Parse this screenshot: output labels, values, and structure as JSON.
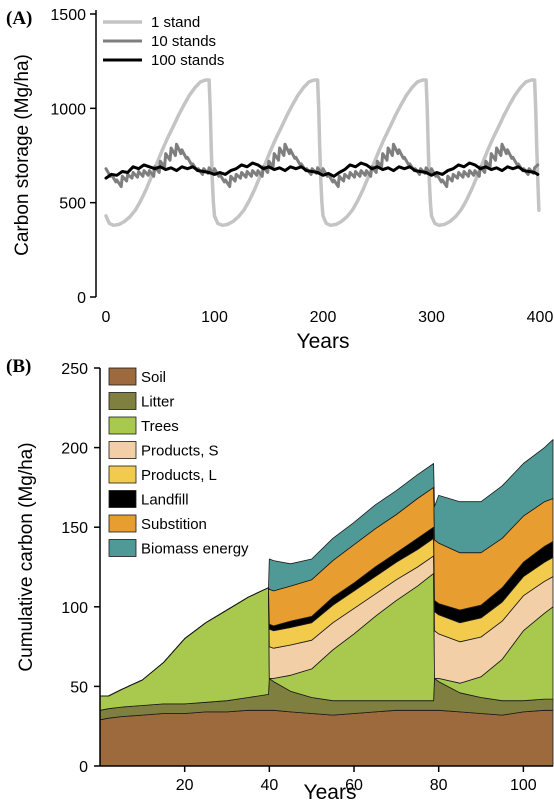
{
  "chart_data": [
    {
      "panel_label": "(A)",
      "type": "line",
      "xlabel": "Years",
      "ylabel": "Carbon storage (Mg/ha)",
      "xlim": [
        0,
        400
      ],
      "ylim": [
        0,
        1500
      ],
      "xticks": [
        "0",
        "100",
        "200",
        "300",
        "400"
      ],
      "yticks": [
        "0",
        "500",
        "1000",
        "1500"
      ],
      "legend_position": "top-left",
      "series": [
        {
          "name": "1 stand",
          "color": "#c4c4c4",
          "x": [
            0,
            3,
            7,
            12,
            17,
            22,
            27,
            32,
            37,
            42,
            47,
            52,
            57,
            62,
            67,
            72,
            77,
            82,
            87,
            92,
            95,
            96,
            97,
            98,
            99,
            100,
            103,
            107,
            112,
            117,
            122,
            127,
            132,
            137,
            142,
            147,
            152,
            157,
            162,
            167,
            172,
            177,
            182,
            187,
            192,
            195,
            196,
            197,
            198,
            199,
            200,
            203,
            207,
            212,
            217,
            222,
            227,
            232,
            237,
            242,
            247,
            252,
            257,
            262,
            267,
            272,
            277,
            282,
            287,
            292,
            295,
            296,
            297,
            298,
            299,
            300,
            303,
            307,
            312,
            317,
            322,
            327,
            332,
            337,
            342,
            347,
            352,
            357,
            362,
            367,
            372,
            377,
            382,
            387,
            392,
            395,
            396,
            397,
            398,
            399
          ],
          "y": [
            430,
            390,
            380,
            385,
            400,
            425,
            460,
            510,
            570,
            640,
            710,
            780,
            845,
            905,
            965,
            1020,
            1070,
            1110,
            1140,
            1150,
            1150,
            1000,
            800,
            620,
            500,
            430,
            390,
            380,
            385,
            400,
            425,
            460,
            510,
            570,
            640,
            710,
            780,
            845,
            905,
            965,
            1020,
            1070,
            1110,
            1140,
            1150,
            1150,
            1000,
            800,
            620,
            500,
            430,
            390,
            380,
            385,
            400,
            425,
            460,
            510,
            570,
            640,
            710,
            780,
            845,
            905,
            965,
            1020,
            1070,
            1110,
            1140,
            1150,
            1150,
            1000,
            800,
            620,
            500,
            430,
            390,
            380,
            385,
            400,
            425,
            460,
            510,
            570,
            640,
            710,
            780,
            845,
            905,
            965,
            1020,
            1070,
            1110,
            1140,
            1150,
            1150,
            1000,
            800,
            620,
            460
          ]
        },
        {
          "name": "10 stands",
          "color": "#7f7f7f",
          "x": [
            0,
            4,
            5,
            9,
            10,
            14,
            15,
            19,
            20,
            24,
            25,
            29,
            30,
            34,
            35,
            39,
            40,
            44,
            45,
            49,
            50,
            54,
            55,
            59,
            60,
            64,
            65,
            69,
            70,
            74,
            75,
            79,
            80,
            84,
            85,
            89,
            90,
            94,
            95,
            99,
            100,
            104,
            105,
            109,
            110,
            114,
            115,
            119,
            120,
            124,
            125,
            129,
            130,
            134,
            135,
            139,
            140,
            144,
            145,
            149,
            150,
            154,
            155,
            159,
            160,
            164,
            165,
            169,
            170,
            174,
            175,
            179,
            180,
            184,
            185,
            189,
            190,
            194,
            195,
            199,
            200,
            204,
            205,
            209,
            210,
            214,
            215,
            219,
            220,
            224,
            225,
            229,
            230,
            234,
            235,
            239,
            240,
            244,
            245,
            249,
            250,
            254,
            255,
            259,
            260,
            264,
            265,
            269,
            270,
            274,
            275,
            279,
            280,
            284,
            285,
            289,
            290,
            294,
            295,
            299,
            300,
            304,
            305,
            309,
            310,
            314,
            315,
            319,
            320,
            324,
            325,
            329,
            330,
            334,
            335,
            339,
            340,
            344,
            345,
            349,
            350,
            354,
            355,
            359,
            360,
            364,
            365,
            369,
            370,
            374,
            375,
            379,
            380,
            384,
            385,
            389,
            390,
            394,
            395,
            398
          ],
          "y": [
            680,
            640,
            650,
            610,
            620,
            585,
            640,
            615,
            650,
            630,
            660,
            635,
            665,
            640,
            670,
            645,
            670,
            640,
            690,
            660,
            720,
            690,
            760,
            725,
            790,
            750,
            810,
            760,
            780,
            735,
            740,
            700,
            705,
            670,
            680,
            650,
            680,
            655,
            685,
            655,
            680,
            640,
            650,
            610,
            620,
            585,
            640,
            615,
            650,
            630,
            660,
            635,
            665,
            640,
            670,
            645,
            670,
            640,
            690,
            660,
            720,
            690,
            760,
            725,
            790,
            750,
            810,
            760,
            780,
            735,
            740,
            700,
            705,
            670,
            680,
            650,
            680,
            655,
            685,
            655,
            680,
            640,
            650,
            610,
            620,
            585,
            640,
            615,
            650,
            630,
            660,
            635,
            665,
            640,
            670,
            645,
            670,
            640,
            690,
            660,
            720,
            690,
            760,
            725,
            790,
            750,
            810,
            760,
            780,
            735,
            740,
            700,
            705,
            670,
            680,
            650,
            680,
            655,
            685,
            655,
            680,
            640,
            650,
            610,
            620,
            585,
            640,
            615,
            650,
            630,
            660,
            635,
            665,
            640,
            670,
            645,
            670,
            640,
            690,
            660,
            720,
            690,
            760,
            725,
            790,
            750,
            810,
            760,
            780,
            735,
            740,
            700,
            705,
            670,
            680,
            650,
            680,
            655,
            685,
            700
          ]
        },
        {
          "name": "100 stands",
          "color": "#000000",
          "x": [
            0,
            5,
            10,
            15,
            20,
            25,
            30,
            35,
            40,
            45,
            50,
            55,
            60,
            65,
            70,
            75,
            80,
            85,
            90,
            95,
            100,
            105,
            110,
            115,
            120,
            125,
            130,
            135,
            140,
            145,
            150,
            155,
            160,
            165,
            170,
            175,
            180,
            185,
            190,
            195,
            200,
            205,
            210,
            215,
            220,
            225,
            230,
            235,
            240,
            245,
            250,
            255,
            260,
            265,
            270,
            275,
            280,
            285,
            290,
            295,
            300,
            305,
            310,
            315,
            320,
            325,
            330,
            335,
            340,
            345,
            350,
            355,
            360,
            365,
            370,
            375,
            380,
            385,
            390,
            395,
            398
          ],
          "y": [
            630,
            650,
            645,
            665,
            660,
            690,
            680,
            700,
            690,
            680,
            690,
            675,
            685,
            670,
            690,
            680,
            690,
            670,
            665,
            660,
            650,
            660,
            650,
            670,
            680,
            700,
            690,
            710,
            700,
            680,
            690,
            675,
            685,
            670,
            690,
            680,
            690,
            670,
            665,
            660,
            645,
            655,
            640,
            660,
            675,
            700,
            690,
            710,
            700,
            680,
            690,
            675,
            685,
            670,
            690,
            680,
            690,
            670,
            665,
            660,
            645,
            660,
            650,
            670,
            680,
            700,
            690,
            710,
            700,
            680,
            690,
            675,
            685,
            670,
            690,
            680,
            690,
            670,
            665,
            660,
            650
          ]
        }
      ]
    },
    {
      "panel_label": "(B)",
      "type": "area",
      "stacked": true,
      "xlabel": "Years",
      "ylabel": "Cumulative carbon (Mg/ha)",
      "xlim": [
        0,
        107
      ],
      "ylim": [
        0,
        250
      ],
      "xticks": [
        "20",
        "40",
        "60",
        "80",
        "100"
      ],
      "yticks": [
        "0",
        "50",
        "100",
        "150",
        "200",
        "250"
      ],
      "legend_position": "top-left",
      "x": [
        0,
        2,
        5,
        10,
        15,
        20,
        25,
        30,
        35,
        39.8,
        40,
        41,
        45,
        50,
        55,
        60,
        65,
        70,
        75,
        78.8,
        79,
        80,
        85,
        90,
        95,
        100,
        105,
        107
      ],
      "series": [
        {
          "name": "Soil",
          "color": "#9c6a3c",
          "values": [
            29,
            30,
            31,
            32,
            33,
            33,
            34,
            34,
            35,
            35,
            35,
            35,
            34,
            33,
            32,
            33,
            34,
            35,
            35,
            35,
            35,
            35,
            34,
            33,
            32,
            34,
            35,
            35
          ]
        },
        {
          "name": "Litter",
          "color": "#7f7f3f",
          "values": [
            6,
            6,
            6,
            6,
            6,
            6,
            6,
            7,
            8,
            10,
            20,
            18,
            13,
            10,
            9,
            8,
            7,
            6,
            6,
            6,
            20,
            18,
            12,
            10,
            9,
            7,
            7,
            7
          ]
        },
        {
          "name": "Trees",
          "color": "#a8c94e",
          "values": [
            9,
            8,
            11,
            16,
            26,
            41,
            50,
            57,
            63,
            67,
            0,
            2,
            10,
            18,
            32,
            42,
            53,
            63,
            72,
            80,
            0,
            2,
            6,
            13,
            26,
            44,
            54,
            58
          ]
        },
        {
          "name": "Products, S",
          "color": "#f3cfa7",
          "values": [
            0,
            0,
            0,
            0,
            0,
            0,
            0,
            0,
            0,
            0,
            20,
            19,
            19,
            18,
            17,
            16,
            14,
            13,
            12,
            11,
            30,
            28,
            26,
            25,
            24,
            22,
            20,
            19
          ]
        },
        {
          "name": "Products, L",
          "color": "#f2cb4c",
          "values": [
            0,
            0,
            0,
            0,
            0,
            0,
            0,
            0,
            0,
            0,
            11,
            11,
            11,
            11,
            11,
            11,
            11,
            11,
            11,
            11,
            12,
            12,
            12,
            12,
            12,
            12,
            12,
            12
          ]
        },
        {
          "name": "Landfill",
          "color": "#000000",
          "values": [
            0,
            0,
            0,
            0,
            0,
            0,
            0,
            0,
            0,
            0,
            3,
            3,
            4,
            4,
            5,
            5,
            6,
            6,
            7,
            7,
            7,
            7,
            8,
            8,
            9,
            9,
            10,
            10
          ]
        },
        {
          "name": "Substition",
          "color": "#e89d31",
          "values": [
            0,
            0,
            0,
            0,
            0,
            0,
            0,
            0,
            0,
            0,
            22,
            22,
            22,
            23,
            23,
            24,
            24,
            24,
            25,
            25,
            38,
            38,
            36,
            33,
            31,
            29,
            28,
            27
          ]
        },
        {
          "name": "Biomass energy",
          "color": "#4f9a96",
          "values": [
            0,
            0,
            0,
            0,
            0,
            0,
            0,
            0,
            0,
            0,
            19,
            19,
            14,
            13,
            14,
            14,
            15,
            15,
            15,
            15,
            21,
            30,
            32,
            32,
            33,
            33,
            34,
            37
          ]
        }
      ]
    }
  ]
}
